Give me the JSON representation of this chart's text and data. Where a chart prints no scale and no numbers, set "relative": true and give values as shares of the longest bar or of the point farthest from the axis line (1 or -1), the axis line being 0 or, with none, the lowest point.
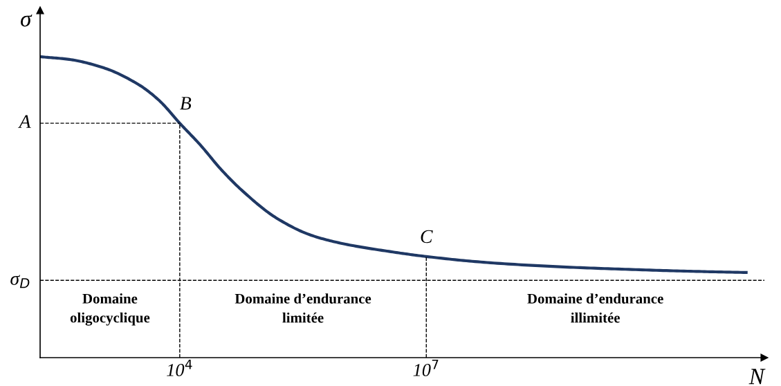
{
  "chart_data": {
    "type": "line",
    "relative": true,
    "log": "x",
    "xlabel": "N",
    "ylabel": "σ",
    "x": [
      200,
      452,
      1190,
      3130,
      5600,
      10000,
      17900,
      31900,
      57000,
      150000,
      395000,
      1040000,
      3320000,
      10000000,
      49800000,
      345000000,
      2390000000,
      16500000000,
      78000000000
    ],
    "series": [
      {
        "color": "#1f3864",
        "values": [
          1,
          0.991,
          0.963,
          0.908,
          0.855,
          0.779,
          0.706,
          0.625,
          0.556,
          0.464,
          0.407,
          0.377,
          0.354,
          0.336,
          0.317,
          0.303,
          0.294,
          0.287,
          0.283
        ]
      }
    ],
    "xlim": [
      200,
      130000000000
    ],
    "xticks": [
      {
        "value": 10000,
        "label": "10$^{4}$"
      },
      {
        "value": 10000000,
        "label": "10$^{7}$"
      }
    ],
    "ref_lines": [
      {
        "axis": "y",
        "value": 0.779,
        "label": "A",
        "line_style": "dashed",
        "color": "#000000"
      },
      {
        "axis": "y",
        "value": 0.257,
        "label": "σ$_{D}$",
        "line_style": "dashed",
        "color": "#000000"
      }
    ],
    "annotations": [
      {
        "text": "B",
        "x": 10000,
        "y": 0.779
      },
      {
        "text": "C",
        "x": 10000000,
        "y": 0.336
      },
      "Domaine\noligocyclique",
      "Domaine d’endurance\nlimitée",
      "Domaine d’endurance\nillimitée"
    ],
    "marker": "none",
    "line_style": "solid"
  }
}
